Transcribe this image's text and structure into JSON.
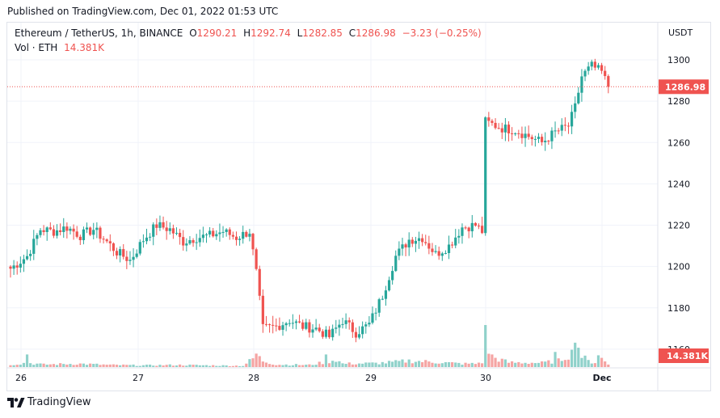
{
  "header": {
    "published": "Published on TradingView.com, Dec 01, 2022 01:53 UTC"
  },
  "legend": {
    "symbol": "Ethereum / TetherUS, 1h, BINANCE",
    "o_key": "O",
    "o_val": "1290.21",
    "h_key": "H",
    "h_val": "1292.74",
    "l_key": "L",
    "l_val": "1282.85",
    "c_key": "C",
    "c_val": "1286.98",
    "change": "−3.23 (−0.25%)",
    "vol_label": "Vol · ETH",
    "vol_value": "14.381K"
  },
  "footer": {
    "brand": "TradingView"
  },
  "colors": {
    "up": "#26a69a",
    "down": "#ef5350",
    "up_vol": "#8fd1ca",
    "down_vol": "#f5a4a3"
  },
  "chart_data": {
    "type": "candlestick",
    "symbol": "Ethereum / TetherUS",
    "interval": "1h",
    "exchange": "BINANCE",
    "quote_unit": "USDT",
    "price_axis": {
      "ticks": [
        1160,
        1180,
        1200,
        1220,
        1240,
        1260,
        1280,
        1300
      ],
      "range": [
        1140,
        1318
      ]
    },
    "x_ticks": [
      "26",
      "27",
      "28",
      "29",
      "30",
      "Dec"
    ],
    "last_price": 1286.98,
    "last_price_label": "1286.98",
    "last_volume_label": "14.381K",
    "anchors": [
      {
        "i": 0,
        "p": 1199
      },
      {
        "i": 5,
        "p": 1205
      },
      {
        "i": 9,
        "p": 1218
      },
      {
        "i": 13,
        "p": 1217
      },
      {
        "i": 17,
        "p": 1219
      },
      {
        "i": 21,
        "p": 1215
      },
      {
        "i": 25,
        "p": 1218
      },
      {
        "i": 29,
        "p": 1212
      },
      {
        "i": 32,
        "p": 1207
      },
      {
        "i": 36,
        "p": 1203
      },
      {
        "i": 40,
        "p": 1213
      },
      {
        "i": 44,
        "p": 1220
      },
      {
        "i": 48,
        "p": 1218
      },
      {
        "i": 52,
        "p": 1212
      },
      {
        "i": 56,
        "p": 1214
      },
      {
        "i": 60,
        "p": 1215
      },
      {
        "i": 64,
        "p": 1217
      },
      {
        "i": 68,
        "p": 1214
      },
      {
        "i": 72,
        "p": 1217
      },
      {
        "i": 74,
        "p": 1197
      },
      {
        "i": 76,
        "p": 1170
      },
      {
        "i": 80,
        "p": 1171
      },
      {
        "i": 84,
        "p": 1174
      },
      {
        "i": 88,
        "p": 1171
      },
      {
        "i": 92,
        "p": 1170
      },
      {
        "i": 96,
        "p": 1166
      },
      {
        "i": 100,
        "p": 1174
      },
      {
        "i": 104,
        "p": 1168
      },
      {
        "i": 108,
        "p": 1172
      },
      {
        "i": 112,
        "p": 1186
      },
      {
        "i": 116,
        "p": 1205
      },
      {
        "i": 120,
        "p": 1213
      },
      {
        "i": 124,
        "p": 1214
      },
      {
        "i": 128,
        "p": 1206
      },
      {
        "i": 132,
        "p": 1210
      },
      {
        "i": 136,
        "p": 1219
      },
      {
        "i": 140,
        "p": 1220
      },
      {
        "i": 142,
        "p": 1217
      },
      {
        "i": 143,
        "p": 1270
      },
      {
        "i": 148,
        "p": 1267
      },
      {
        "i": 152,
        "p": 1266
      },
      {
        "i": 156,
        "p": 1263
      },
      {
        "i": 160,
        "p": 1260
      },
      {
        "i": 164,
        "p": 1265
      },
      {
        "i": 168,
        "p": 1268
      },
      {
        "i": 170,
        "p": 1277
      },
      {
        "i": 172,
        "p": 1292
      },
      {
        "i": 175,
        "p": 1297
      },
      {
        "i": 178,
        "p": 1294
      },
      {
        "i": 180,
        "p": 1287
      }
    ],
    "volume_anchors": [
      {
        "i": 0,
        "v": 6
      },
      {
        "i": 5,
        "v": 10
      },
      {
        "i": 10,
        "v": 6
      },
      {
        "i": 20,
        "v": 8
      },
      {
        "i": 30,
        "v": 5
      },
      {
        "i": 40,
        "v": 4
      },
      {
        "i": 50,
        "v": 5
      },
      {
        "i": 60,
        "v": 4
      },
      {
        "i": 70,
        "v": 3
      },
      {
        "i": 73,
        "v": 20
      },
      {
        "i": 74,
        "v": 28
      },
      {
        "i": 76,
        "v": 15
      },
      {
        "i": 80,
        "v": 6
      },
      {
        "i": 90,
        "v": 5
      },
      {
        "i": 95,
        "v": 12
      },
      {
        "i": 98,
        "v": 18
      },
      {
        "i": 100,
        "v": 8
      },
      {
        "i": 110,
        "v": 9
      },
      {
        "i": 116,
        "v": 12
      },
      {
        "i": 120,
        "v": 15
      },
      {
        "i": 125,
        "v": 13
      },
      {
        "i": 130,
        "v": 11
      },
      {
        "i": 136,
        "v": 8
      },
      {
        "i": 140,
        "v": 8
      },
      {
        "i": 142,
        "v": 12
      },
      {
        "i": 143,
        "v": 52
      },
      {
        "i": 145,
        "v": 24
      },
      {
        "i": 150,
        "v": 11
      },
      {
        "i": 160,
        "v": 10
      },
      {
        "i": 165,
        "v": 15
      },
      {
        "i": 170,
        "v": 38
      },
      {
        "i": 174,
        "v": 14
      },
      {
        "i": 176,
        "v": 11
      },
      {
        "i": 178,
        "v": 20
      },
      {
        "i": 180,
        "v": 6
      }
    ],
    "highlighted_volume_bars": [
      {
        "i": 5,
        "v": 30
      },
      {
        "i": 74,
        "v": 32
      },
      {
        "i": 95,
        "v": 30
      },
      {
        "i": 143,
        "v": 100
      },
      {
        "i": 145,
        "v": 30
      },
      {
        "i": 164,
        "v": 36
      },
      {
        "i": 170,
        "v": 58
      },
      {
        "i": 171,
        "v": 46
      },
      {
        "i": 177,
        "v": 28
      }
    ],
    "grid": true
  }
}
